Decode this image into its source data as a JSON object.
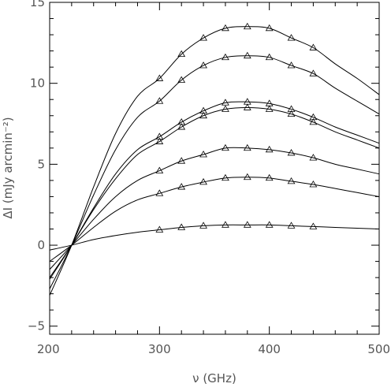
{
  "chart_data": {
    "type": "line",
    "xlabel": "ν (GHz)",
    "ylabel": "ΔI (mJy arcmin⁻²)",
    "xlim": [
      200,
      500
    ],
    "ylim": [
      -5.5,
      15
    ],
    "x_ticks": [
      {
        "value": 200,
        "label": "200"
      },
      {
        "value": 300,
        "label": "300"
      },
      {
        "value": 400,
        "label": "400"
      },
      {
        "value": 500,
        "label": "500"
      }
    ],
    "y_ticks": [
      {
        "value": -5,
        "label": "−5"
      },
      {
        "value": 0,
        "label": "0"
      },
      {
        "value": 5,
        "label": "5"
      },
      {
        "value": 10,
        "label": "10"
      },
      {
        "value": 15,
        "label": "15"
      }
    ],
    "x": [
      200,
      220,
      240,
      260,
      280,
      300,
      320,
      340,
      360,
      380,
      400,
      420,
      440,
      460,
      480,
      500
    ],
    "marker_x": [
      300,
      320,
      340,
      360,
      380,
      400,
      420,
      440
    ],
    "series": [
      {
        "values": [
          -3.1,
          0.0,
          3.6,
          6.9,
          9.2,
          10.3,
          11.8,
          12.8,
          13.4,
          13.5,
          13.4,
          12.8,
          12.2,
          11.2,
          10.3,
          9.3
        ]
      },
      {
        "values": [
          -2.7,
          0.0,
          3.1,
          5.9,
          7.9,
          8.9,
          10.2,
          11.1,
          11.6,
          11.7,
          11.6,
          11.1,
          10.6,
          9.7,
          8.9,
          8.1
        ]
      },
      {
        "values": [
          -2.1,
          0.0,
          2.3,
          4.4,
          5.9,
          6.7,
          7.6,
          8.3,
          8.8,
          8.85,
          8.75,
          8.4,
          7.9,
          7.3,
          6.8,
          6.3
        ]
      },
      {
        "values": [
          -2.0,
          0.0,
          2.2,
          4.1,
          5.6,
          6.4,
          7.3,
          8.0,
          8.4,
          8.5,
          8.4,
          8.1,
          7.6,
          7.0,
          6.5,
          6.0
        ]
      },
      {
        "values": [
          -1.5,
          0.0,
          1.6,
          3.0,
          4.0,
          4.6,
          5.2,
          5.6,
          6.0,
          6.0,
          5.9,
          5.7,
          5.4,
          5.0,
          4.7,
          4.4
        ]
      },
      {
        "values": [
          -1.0,
          0.0,
          1.1,
          2.1,
          2.8,
          3.2,
          3.6,
          3.9,
          4.15,
          4.2,
          4.15,
          3.95,
          3.75,
          3.5,
          3.25,
          3.0
        ]
      },
      {
        "values": [
          -0.3,
          0.0,
          0.35,
          0.6,
          0.8,
          0.95,
          1.1,
          1.2,
          1.25,
          1.25,
          1.25,
          1.2,
          1.15,
          1.1,
          1.05,
          1.0
        ]
      }
    ]
  }
}
